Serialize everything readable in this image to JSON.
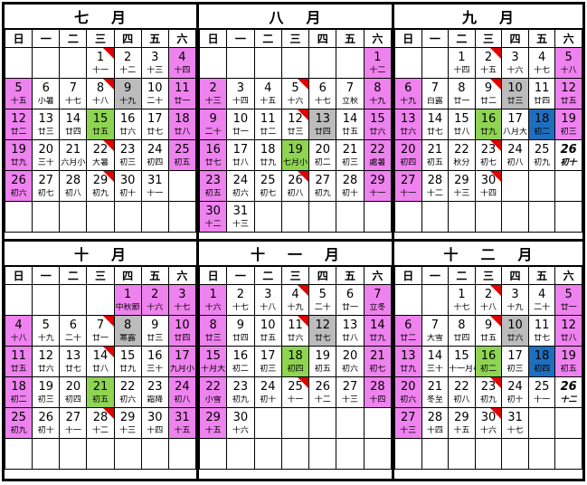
{
  "weekdays": [
    "日",
    "一",
    "二",
    "三",
    "四",
    "五",
    "六"
  ],
  "colors": {
    "pink": "#ee82ee",
    "gray": "#bcbcbc",
    "green": "#8fd452",
    "blue": "#1f6fbf",
    "flag": "#e00000"
  },
  "months": [
    {
      "title": [
        "七",
        "月"
      ],
      "weeks": [
        [
          {},
          {},
          {},
          {
            "d": "1",
            "l": "十一",
            "f": 1
          },
          {
            "d": "2",
            "l": "十二"
          },
          {
            "d": "3",
            "l": "十三"
          },
          {
            "d": "4",
            "l": "十四",
            "c": "pk"
          }
        ],
        [
          {
            "d": "5",
            "l": "十五",
            "c": "pk"
          },
          {
            "d": "6",
            "l": "小暑"
          },
          {
            "d": "7",
            "l": "十七"
          },
          {
            "d": "8",
            "l": "十八",
            "f": 1
          },
          {
            "d": "9",
            "l": "十九",
            "c": "gy"
          },
          {
            "d": "10",
            "l": "二十"
          },
          {
            "d": "11",
            "l": "廿一",
            "c": "pk"
          }
        ],
        [
          {
            "d": "12",
            "l": "廿二",
            "c": "pk"
          },
          {
            "d": "13",
            "l": "廿三"
          },
          {
            "d": "14",
            "l": "廿四"
          },
          {
            "d": "15",
            "l": "廿五",
            "c": "gr"
          },
          {
            "d": "16",
            "l": "廿六"
          },
          {
            "d": "17",
            "l": "廿七"
          },
          {
            "d": "18",
            "l": "廿八",
            "c": "pk"
          }
        ],
        [
          {
            "d": "19",
            "l": "廿九",
            "c": "pk"
          },
          {
            "d": "20",
            "l": "三十"
          },
          {
            "d": "21",
            "l": "六月小"
          },
          {
            "d": "22",
            "l": "大暑",
            "f": 1
          },
          {
            "d": "23",
            "l": "初三"
          },
          {
            "d": "24",
            "l": "初四"
          },
          {
            "d": "25",
            "l": "初五",
            "c": "pk"
          }
        ],
        [
          {
            "d": "26",
            "l": "初六",
            "c": "pk"
          },
          {
            "d": "27",
            "l": "初七"
          },
          {
            "d": "28",
            "l": "初八"
          },
          {
            "d": "29",
            "l": "初九",
            "f": 1
          },
          {
            "d": "30",
            "l": "初十"
          },
          {
            "d": "31",
            "l": "十一"
          },
          {}
        ],
        [
          {},
          {},
          {},
          {},
          {},
          {},
          {}
        ]
      ]
    },
    {
      "title": [
        "八",
        "月"
      ],
      "weeks": [
        [
          {},
          {},
          {},
          {},
          {},
          {},
          {
            "d": "1",
            "l": "十二",
            "c": "pk"
          }
        ],
        [
          {
            "d": "2",
            "l": "十三",
            "c": "pk"
          },
          {
            "d": "3",
            "l": "十四"
          },
          {
            "d": "4",
            "l": "十五"
          },
          {
            "d": "5",
            "l": "十六",
            "f": 1
          },
          {
            "d": "6",
            "l": "十七"
          },
          {
            "d": "7",
            "l": "立秋"
          },
          {
            "d": "8",
            "l": "十九",
            "c": "pk"
          }
        ],
        [
          {
            "d": "9",
            "l": "二十",
            "c": "pk"
          },
          {
            "d": "10",
            "l": "廿一"
          },
          {
            "d": "11",
            "l": "廿二"
          },
          {
            "d": "12",
            "l": "廿三",
            "f": 1
          },
          {
            "d": "13",
            "l": "廿四",
            "c": "gy"
          },
          {
            "d": "14",
            "l": "廿五"
          },
          {
            "d": "15",
            "l": "廿六",
            "c": "pk"
          }
        ],
        [
          {
            "d": "16",
            "l": "廿七",
            "c": "pk"
          },
          {
            "d": "17",
            "l": "廿八"
          },
          {
            "d": "18",
            "l": "廿九"
          },
          {
            "d": "19",
            "l": "七月小",
            "c": "gr"
          },
          {
            "d": "20",
            "l": "初二"
          },
          {
            "d": "21",
            "l": "初三"
          },
          {
            "d": "22",
            "l": "處暑",
            "c": "pk"
          }
        ],
        [
          {
            "d": "23",
            "l": "初五",
            "c": "pk"
          },
          {
            "d": "24",
            "l": "初六"
          },
          {
            "d": "25",
            "l": "初七"
          },
          {
            "d": "26",
            "l": "初八",
            "f": 1
          },
          {
            "d": "27",
            "l": "初九"
          },
          {
            "d": "28",
            "l": "初十"
          },
          {
            "d": "29",
            "l": "十一",
            "c": "pk"
          }
        ],
        [
          {
            "d": "30",
            "l": "十二",
            "c": "pk"
          },
          {
            "d": "31",
            "l": "十三"
          },
          {},
          {},
          {},
          {},
          {}
        ]
      ]
    },
    {
      "title": [
        "九",
        "月"
      ],
      "weeks": [
        [
          {},
          {},
          {
            "d": "1",
            "l": "十四"
          },
          {
            "d": "2",
            "l": "十五",
            "f": 1
          },
          {
            "d": "3",
            "l": "十六"
          },
          {
            "d": "4",
            "l": "十七"
          },
          {
            "d": "5",
            "l": "十八",
            "c": "pk"
          }
        ],
        [
          {
            "d": "6",
            "l": "十九",
            "c": "pk"
          },
          {
            "d": "7",
            "l": "白露"
          },
          {
            "d": "8",
            "l": "廿一"
          },
          {
            "d": "9",
            "l": "廿二",
            "f": 1
          },
          {
            "d": "10",
            "l": "廿三",
            "c": "gy"
          },
          {
            "d": "11",
            "l": "廿四"
          },
          {
            "d": "12",
            "l": "廿五",
            "c": "pk"
          }
        ],
        [
          {
            "d": "13",
            "l": "廿六",
            "c": "pk"
          },
          {
            "d": "14",
            "l": "廿七"
          },
          {
            "d": "15",
            "l": "廿八"
          },
          {
            "d": "16",
            "l": "廿九",
            "c": "gr"
          },
          {
            "d": "17",
            "l": "八月大"
          },
          {
            "d": "18",
            "l": "初二",
            "c": "bl"
          },
          {
            "d": "19",
            "l": "初三",
            "c": "pk"
          }
        ],
        [
          {
            "d": "20",
            "l": "初四",
            "c": "pk"
          },
          {
            "d": "21",
            "l": "初五"
          },
          {
            "d": "22",
            "l": "秋分"
          },
          {
            "d": "23",
            "l": "初七",
            "f": 1
          },
          {
            "d": "24",
            "l": "初八"
          },
          {
            "d": "25",
            "l": "初九"
          },
          {
            "d": "26",
            "l": "初十",
            "c": "it"
          }
        ],
        [
          {
            "d": "27",
            "l": "十一",
            "c": "pk"
          },
          {
            "d": "28",
            "l": "十二"
          },
          {
            "d": "29",
            "l": "十三"
          },
          {
            "d": "30",
            "l": "十四",
            "f": 1
          },
          {},
          {},
          {}
        ],
        [
          {},
          {},
          {},
          {},
          {},
          {},
          {}
        ]
      ]
    },
    {
      "title": [
        "十",
        "月"
      ],
      "weeks": [
        [
          {},
          {},
          {},
          {},
          {
            "d": "1",
            "l": "中秋節",
            "c": "pk"
          },
          {
            "d": "2",
            "l": "十六",
            "c": "pk"
          },
          {
            "d": "3",
            "l": "十七",
            "c": "pk"
          }
        ],
        [
          {
            "d": "4",
            "l": "十八",
            "c": "pk"
          },
          {
            "d": "5",
            "l": "十九"
          },
          {
            "d": "6",
            "l": "二十"
          },
          {
            "d": "7",
            "l": "廿一",
            "f": 1
          },
          {
            "d": "8",
            "l": "寒露",
            "c": "gy"
          },
          {
            "d": "9",
            "l": "廿三"
          },
          {
            "d": "10",
            "l": "廿四",
            "c": "pk"
          }
        ],
        [
          {
            "d": "11",
            "l": "廿五",
            "c": "pk"
          },
          {
            "d": "12",
            "l": "廿六"
          },
          {
            "d": "13",
            "l": "廿七"
          },
          {
            "d": "14",
            "l": "廿八",
            "f": 1
          },
          {
            "d": "15",
            "l": "廿九"
          },
          {
            "d": "16",
            "l": "三十"
          },
          {
            "d": "17",
            "l": "九月小",
            "c": "pk"
          }
        ],
        [
          {
            "d": "18",
            "l": "初二",
            "c": "pk"
          },
          {
            "d": "19",
            "l": "初三"
          },
          {
            "d": "20",
            "l": "初四"
          },
          {
            "d": "21",
            "l": "初五",
            "c": "gr"
          },
          {
            "d": "22",
            "l": "初六"
          },
          {
            "d": "23",
            "l": "霜降"
          },
          {
            "d": "24",
            "l": "初八",
            "c": "pk"
          }
        ],
        [
          {
            "d": "25",
            "l": "初九",
            "c": "pk"
          },
          {
            "d": "26",
            "l": "初十"
          },
          {
            "d": "27",
            "l": "十一"
          },
          {
            "d": "28",
            "l": "十二",
            "f": 1
          },
          {
            "d": "29",
            "l": "十三"
          },
          {
            "d": "30",
            "l": "十四"
          },
          {
            "d": "31",
            "l": "十五",
            "c": "pk"
          }
        ],
        [
          {},
          {},
          {},
          {},
          {},
          {},
          {}
        ]
      ]
    },
    {
      "title": [
        "十",
        "一",
        "月"
      ],
      "weeks": [
        [
          {
            "d": "1",
            "l": "十六",
            "c": "pk"
          },
          {
            "d": "2",
            "l": "十七"
          },
          {
            "d": "3",
            "l": "十八"
          },
          {
            "d": "4",
            "l": "十九",
            "f": 1
          },
          {
            "d": "5",
            "l": "二十"
          },
          {
            "d": "6",
            "l": "廿一"
          },
          {
            "d": "7",
            "l": "立冬",
            "c": "pk"
          }
        ],
        [
          {
            "d": "8",
            "l": "廿三",
            "c": "pk"
          },
          {
            "d": "9",
            "l": "廿四"
          },
          {
            "d": "10",
            "l": "廿五"
          },
          {
            "d": "11",
            "l": "廿六",
            "f": 1
          },
          {
            "d": "12",
            "l": "廿七",
            "c": "gy"
          },
          {
            "d": "13",
            "l": "廿八"
          },
          {
            "d": "14",
            "l": "廿九",
            "c": "pk"
          }
        ],
        [
          {
            "d": "15",
            "l": "十月大",
            "c": "pk"
          },
          {
            "d": "16",
            "l": "初二"
          },
          {
            "d": "17",
            "l": "初三"
          },
          {
            "d": "18",
            "l": "初四",
            "c": "gr"
          },
          {
            "d": "19",
            "l": "初五"
          },
          {
            "d": "20",
            "l": "初六"
          },
          {
            "d": "21",
            "l": "初七",
            "c": "pk"
          }
        ],
        [
          {
            "d": "22",
            "l": "小雪",
            "c": "pk"
          },
          {
            "d": "23",
            "l": "初九"
          },
          {
            "d": "24",
            "l": "初十"
          },
          {
            "d": "25",
            "l": "十一",
            "f": 1
          },
          {
            "d": "26",
            "l": "十二"
          },
          {
            "d": "27",
            "l": "十三"
          },
          {
            "d": "28",
            "l": "十四",
            "c": "pk"
          }
        ],
        [
          {
            "d": "29",
            "l": "十五",
            "c": "pk"
          },
          {
            "d": "30",
            "l": "十六"
          },
          {},
          {},
          {},
          {},
          {}
        ],
        [
          {},
          {},
          {},
          {},
          {},
          {},
          {}
        ]
      ]
    },
    {
      "title": [
        "十",
        "二",
        "月"
      ],
      "weeks": [
        [
          {},
          {},
          {
            "d": "1",
            "l": "十七"
          },
          {
            "d": "2",
            "l": "十八",
            "f": 1
          },
          {
            "d": "3",
            "l": "十九"
          },
          {
            "d": "4",
            "l": "二十"
          },
          {
            "d": "5",
            "l": "廿一",
            "c": "pk"
          }
        ],
        [
          {
            "d": "6",
            "l": "廿二",
            "c": "pk"
          },
          {
            "d": "7",
            "l": "大雪"
          },
          {
            "d": "8",
            "l": "廿四"
          },
          {
            "d": "9",
            "l": "廿五",
            "f": 1
          },
          {
            "d": "10",
            "l": "廿六",
            "c": "gy"
          },
          {
            "d": "11",
            "l": "廿七"
          },
          {
            "d": "12",
            "l": "廿八",
            "c": "pk"
          }
        ],
        [
          {
            "d": "13",
            "l": "廿九",
            "c": "pk"
          },
          {
            "d": "14",
            "l": "三十"
          },
          {
            "d": "15",
            "l": "十一月小"
          },
          {
            "d": "16",
            "l": "初二",
            "c": "gr"
          },
          {
            "d": "17",
            "l": "初三"
          },
          {
            "d": "18",
            "l": "初四",
            "c": "bl"
          },
          {
            "d": "19",
            "l": "初五",
            "c": "pk"
          }
        ],
        [
          {
            "d": "20",
            "l": "初六",
            "c": "pk"
          },
          {
            "d": "21",
            "l": "冬至"
          },
          {
            "d": "22",
            "l": "初八"
          },
          {
            "d": "23",
            "l": "初九",
            "f": 1
          },
          {
            "d": "24",
            "l": "初十"
          },
          {
            "d": "25",
            "l": "十一"
          },
          {
            "d": "26",
            "l": "十二",
            "c": "it"
          }
        ],
        [
          {
            "d": "27",
            "l": "十三",
            "c": "pk"
          },
          {
            "d": "28",
            "l": "十四"
          },
          {
            "d": "29",
            "l": "十五"
          },
          {
            "d": "30",
            "l": "十六",
            "f": 1
          },
          {
            "d": "31",
            "l": "十七"
          },
          {},
          {}
        ],
        [
          {},
          {},
          {},
          {},
          {},
          {},
          {}
        ]
      ]
    }
  ]
}
